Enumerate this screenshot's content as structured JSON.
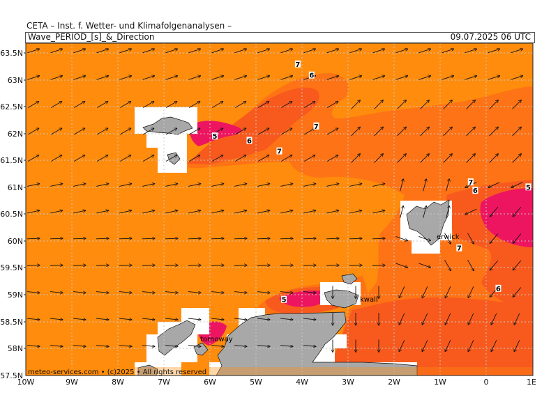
{
  "header": {
    "title": "CETA – Inst. f. Wetter- und Klimafolgenanalysen –",
    "variable": "Wave_PERIOD_[s]_&_Direction",
    "datetime": "09.07.2025 06 UTC"
  },
  "axes": {
    "y_labels": [
      "63.5N",
      "63N",
      "62.5N",
      "62N",
      "61.5N",
      "61N",
      "60.5N",
      "60N",
      "59.5N",
      "59N",
      "58.5N",
      "58N",
      "57.5N"
    ],
    "x_labels": [
      "10W",
      "9W",
      "8W",
      "7W",
      "6W",
      "5W",
      "4W",
      "3W",
      "2W",
      "1W",
      "0",
      "1E"
    ]
  },
  "map": {
    "lon_range": [
      -10,
      1
    ],
    "lat_range": [
      57.5,
      63.5
    ],
    "colors": {
      "period_5": "#ee1560",
      "period_6": "#f85a1e",
      "period_7": "#fe7315",
      "period_8": "#ff8c0c",
      "land": "#a8a8a8",
      "mask": "#ffffff",
      "grid": "#c8c8c8"
    },
    "place_labels": [
      {
        "name": "Lerwick",
        "text": "erwick"
      },
      {
        "name": "Kirkwall",
        "text": "kwall"
      },
      {
        "name": "Stornoway",
        "text": "tornoway"
      }
    ],
    "contour_labels": [
      {
        "text": "7",
        "lon": -4.1,
        "lat": 63.1
      },
      {
        "text": "6",
        "lon": -3.8,
        "lat": 62.9
      },
      {
        "text": "5",
        "lon": -5.9,
        "lat": 61.8
      },
      {
        "text": "6",
        "lon": -5.15,
        "lat": 61.72
      },
      {
        "text": "7",
        "lon": -3.7,
        "lat": 61.98
      },
      {
        "text": "7",
        "lon": -4.5,
        "lat": 61.53
      },
      {
        "text": "7",
        "lon": -0.35,
        "lat": 60.97
      },
      {
        "text": "6",
        "lon": -0.25,
        "lat": 60.82
      },
      {
        "text": "5",
        "lon": 0.9,
        "lat": 60.88
      },
      {
        "text": "7",
        "lon": -0.6,
        "lat": 59.78
      },
      {
        "text": "6",
        "lon": 0.25,
        "lat": 59.05
      },
      {
        "text": "5",
        "lon": -4.4,
        "lat": 58.85
      }
    ]
  },
  "credit": "meteo-services.com • (c)2025 • All rights reserved"
}
